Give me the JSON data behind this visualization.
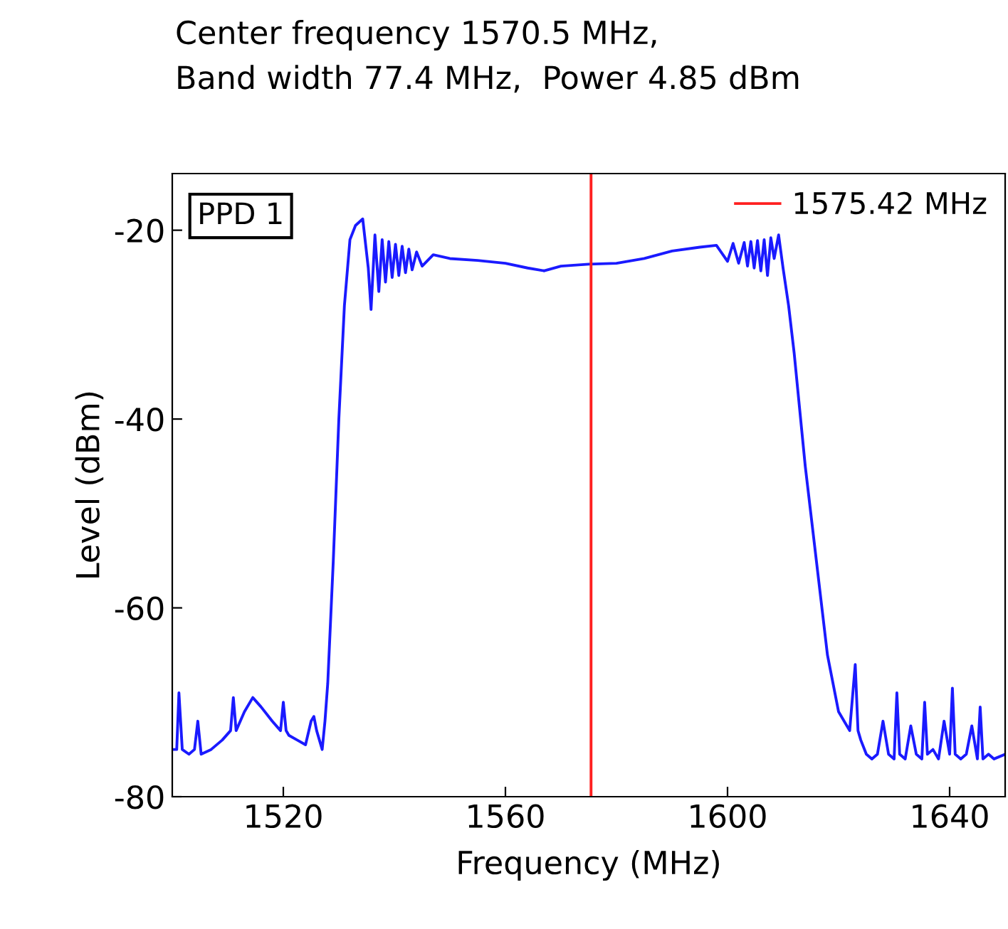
{
  "chart_data": {
    "type": "line",
    "title": "Center frequency 1570.5 MHz,\nBand width 77.4 MHz,  Power 4.85 dBm",
    "xlabel": "Frequency (MHz)",
    "ylabel": "Level (dBm)",
    "annotations": [
      "PPD 1"
    ],
    "series": [
      {
        "color": "#1a1aff",
        "x": [
          1500,
          1500.8,
          1501.2,
          1501.8,
          1503,
          1504,
          1504.6,
          1505.2,
          1507,
          1509,
          1510.5,
          1511,
          1511.5,
          1513,
          1514.5,
          1516,
          1518,
          1519.5,
          1520,
          1520.5,
          1521,
          1522.5,
          1524,
          1525,
          1525.5,
          1526,
          1527,
          1527.5,
          1528,
          1529,
          1530,
          1531,
          1532,
          1533,
          1534.3,
          1535.3,
          1535.8,
          1536.5,
          1537.2,
          1537.8,
          1538.4,
          1539,
          1539.6,
          1540.2,
          1540.8,
          1541.4,
          1542,
          1542.6,
          1543.2,
          1544,
          1545,
          1547,
          1550,
          1555,
          1560,
          1564,
          1567,
          1570,
          1575,
          1580,
          1585,
          1590,
          1595,
          1598,
          1600,
          1601,
          1602,
          1603,
          1603.6,
          1604.2,
          1604.8,
          1605.4,
          1606,
          1606.6,
          1607.2,
          1607.8,
          1608.4,
          1609.2,
          1610,
          1611,
          1612,
          1614,
          1616,
          1618,
          1620,
          1622,
          1623,
          1623.5,
          1624,
          1625,
          1626,
          1627,
          1628,
          1629,
          1630,
          1630.5,
          1631,
          1632,
          1633,
          1634,
          1635,
          1635.5,
          1636,
          1637,
          1638,
          1639,
          1640,
          1640.5,
          1641,
          1642,
          1643,
          1644,
          1645,
          1645.5,
          1646,
          1647,
          1648,
          1650
        ],
        "values": [
          -75,
          -75,
          -69,
          -75,
          -75.5,
          -75,
          -72,
          -75.5,
          -75,
          -74,
          -73,
          -69.5,
          -73,
          -71,
          -69.5,
          -70.5,
          -72,
          -73,
          -70,
          -73,
          -73.5,
          -74,
          -74.5,
          -72,
          -71.5,
          -73,
          -75,
          -72,
          -68,
          -55,
          -40,
          -28,
          -21,
          -19.5,
          -18.8,
          -24,
          -28.4,
          -20.5,
          -26.5,
          -21,
          -25.5,
          -21.2,
          -25,
          -21.5,
          -24.8,
          -21.7,
          -24.5,
          -22,
          -24.2,
          -22.3,
          -23.8,
          -22.6,
          -23,
          -23.2,
          -23.5,
          -24,
          -24.3,
          -23.8,
          -23.6,
          -23.5,
          -23,
          -22.2,
          -21.8,
          -21.6,
          -23.3,
          -21.4,
          -23.5,
          -21.3,
          -23.8,
          -21.2,
          -24,
          -21.1,
          -24.3,
          -21,
          -24.8,
          -20.8,
          -23,
          -20.5,
          -24,
          -28,
          -33,
          -45,
          -55,
          -65,
          -71,
          -73,
          -66,
          -73,
          -74,
          -75.5,
          -76,
          -75.5,
          -72,
          -75.5,
          -76,
          -69,
          -75.5,
          -76,
          -72.5,
          -75.5,
          -76,
          -70,
          -75.5,
          -75,
          -76,
          -72,
          -75.5,
          -68.5,
          -75.5,
          -76,
          -75.5,
          -72.5,
          -76,
          -70.5,
          -76,
          -75.5,
          -76,
          -75.5
        ]
      },
      {
        "name": "1575.42 MHz",
        "color": "#ff2020",
        "x": [
          1575.42,
          1575.42
        ],
        "values": [
          -80,
          -14
        ]
      }
    ],
    "xlim": [
      1500,
      1650
    ],
    "ylim": [
      -80,
      -14
    ],
    "xticks": [
      1520,
      1560,
      1600,
      1640
    ],
    "yticks": [
      -20,
      -40,
      -60,
      -80
    ],
    "grid": false,
    "legend": "top right",
    "line_style": "solid",
    "marker": "none"
  }
}
